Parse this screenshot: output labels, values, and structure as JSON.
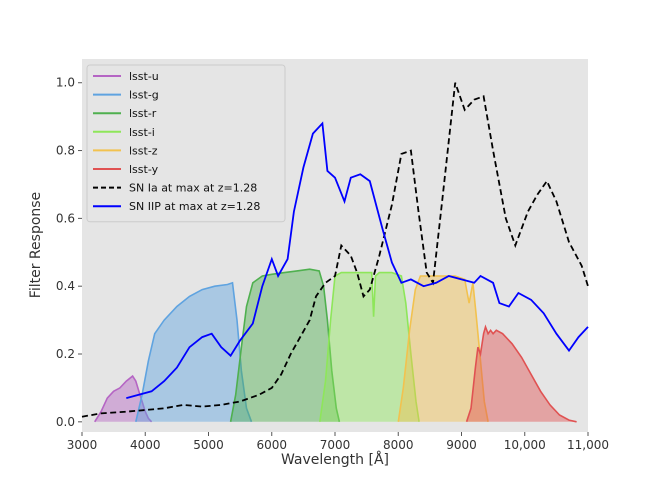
{
  "chart_data": {
    "type": "area",
    "title": "",
    "xlabel": "Wavelength [Å]",
    "ylabel": "Filter Response",
    "xlim": [
      3000,
      11000
    ],
    "ylim": [
      -0.03,
      1.07
    ],
    "x_ticks": [
      3000,
      4000,
      5000,
      6000,
      7000,
      8000,
      9000,
      10000,
      11000
    ],
    "x_tick_labels": [
      "3000",
      "4000",
      "5000",
      "6000",
      "7000",
      "8000",
      "9000",
      "10,000",
      "11,000"
    ],
    "y_ticks": [
      0.0,
      0.2,
      0.4,
      0.6,
      0.8,
      1.0
    ],
    "y_tick_labels": [
      "0.0",
      "0.2",
      "0.4",
      "0.6",
      "0.8",
      "1.0"
    ],
    "grid": false,
    "background": "#e5e5e5",
    "legend_position": "top-left",
    "series": [
      {
        "name": "lsst-u",
        "kind": "fill",
        "color": "#b565c4",
        "points": [
          [
            3200,
            0
          ],
          [
            3300,
            0.03
          ],
          [
            3400,
            0.07
          ],
          [
            3500,
            0.09
          ],
          [
            3600,
            0.1
          ],
          [
            3700,
            0.12
          ],
          [
            3800,
            0.135
          ],
          [
            3850,
            0.12
          ],
          [
            3900,
            0.09
          ],
          [
            3950,
            0.06
          ],
          [
            4000,
            0.03
          ],
          [
            4050,
            0.01
          ],
          [
            4100,
            0
          ]
        ]
      },
      {
        "name": "lsst-g",
        "kind": "fill",
        "color": "#5fa3e0",
        "points": [
          [
            3850,
            0
          ],
          [
            3950,
            0.08
          ],
          [
            4050,
            0.18
          ],
          [
            4150,
            0.26
          ],
          [
            4300,
            0.3
          ],
          [
            4500,
            0.34
          ],
          [
            4700,
            0.37
          ],
          [
            4900,
            0.39
          ],
          [
            5100,
            0.4
          ],
          [
            5300,
            0.405
          ],
          [
            5380,
            0.41
          ],
          [
            5450,
            0.3
          ],
          [
            5520,
            0.15
          ],
          [
            5600,
            0.04
          ],
          [
            5680,
            0
          ]
        ]
      },
      {
        "name": "lsst-r",
        "kind": "fill",
        "color": "#4fb04f",
        "points": [
          [
            5350,
            0
          ],
          [
            5430,
            0.08
          ],
          [
            5520,
            0.22
          ],
          [
            5600,
            0.34
          ],
          [
            5700,
            0.41
          ],
          [
            5850,
            0.43
          ],
          [
            6000,
            0.435
          ],
          [
            6200,
            0.44
          ],
          [
            6400,
            0.445
          ],
          [
            6600,
            0.45
          ],
          [
            6750,
            0.445
          ],
          [
            6820,
            0.4
          ],
          [
            6880,
            0.3
          ],
          [
            6950,
            0.15
          ],
          [
            7020,
            0.04
          ],
          [
            7070,
            0
          ]
        ]
      },
      {
        "name": "lsst-i",
        "kind": "fill",
        "color": "#8ee65a",
        "points": [
          [
            6760,
            0
          ],
          [
            6850,
            0.12
          ],
          [
            6930,
            0.3
          ],
          [
            7000,
            0.43
          ],
          [
            7100,
            0.44
          ],
          [
            7300,
            0.44
          ],
          [
            7500,
            0.44
          ],
          [
            7580,
            0.44
          ],
          [
            7610,
            0.31
          ],
          [
            7640,
            0.43
          ],
          [
            7700,
            0.44
          ],
          [
            7900,
            0.44
          ],
          [
            8050,
            0.43
          ],
          [
            8120,
            0.35
          ],
          [
            8200,
            0.2
          ],
          [
            8280,
            0.06
          ],
          [
            8330,
            0
          ]
        ]
      },
      {
        "name": "lsst-z",
        "kind": "fill",
        "color": "#f2c24f",
        "points": [
          [
            8000,
            0
          ],
          [
            8080,
            0.1
          ],
          [
            8180,
            0.27
          ],
          [
            8270,
            0.39
          ],
          [
            8350,
            0.43
          ],
          [
            8500,
            0.43
          ],
          [
            8700,
            0.43
          ],
          [
            8900,
            0.43
          ],
          [
            9050,
            0.42
          ],
          [
            9120,
            0.35
          ],
          [
            9180,
            0.41
          ],
          [
            9230,
            0.32
          ],
          [
            9300,
            0.18
          ],
          [
            9360,
            0.06
          ],
          [
            9420,
            0
          ]
        ]
      },
      {
        "name": "lsst-y",
        "kind": "fill",
        "color": "#e05252",
        "points": [
          [
            9080,
            0
          ],
          [
            9150,
            0.04
          ],
          [
            9220,
            0.16
          ],
          [
            9260,
            0.22
          ],
          [
            9300,
            0.2
          ],
          [
            9350,
            0.26
          ],
          [
            9380,
            0.28
          ],
          [
            9420,
            0.26
          ],
          [
            9460,
            0.27
          ],
          [
            9500,
            0.26
          ],
          [
            9550,
            0.27
          ],
          [
            9650,
            0.26
          ],
          [
            9800,
            0.23
          ],
          [
            9950,
            0.19
          ],
          [
            10100,
            0.14
          ],
          [
            10250,
            0.09
          ],
          [
            10400,
            0.05
          ],
          [
            10550,
            0.02
          ],
          [
            10700,
            0.005
          ],
          [
            10820,
            0
          ]
        ]
      },
      {
        "name": "SN Ia at max at z=1.28",
        "kind": "line",
        "dash": true,
        "color": "#000000",
        "points": [
          [
            3000,
            0.015
          ],
          [
            3300,
            0.025
          ],
          [
            3700,
            0.03
          ],
          [
            4000,
            0.035
          ],
          [
            4300,
            0.04
          ],
          [
            4600,
            0.05
          ],
          [
            4900,
            0.045
          ],
          [
            5200,
            0.05
          ],
          [
            5500,
            0.06
          ],
          [
            5800,
            0.08
          ],
          [
            6000,
            0.1
          ],
          [
            6150,
            0.14
          ],
          [
            6300,
            0.2
          ],
          [
            6450,
            0.25
          ],
          [
            6600,
            0.3
          ],
          [
            6700,
            0.37
          ],
          [
            6850,
            0.41
          ],
          [
            7000,
            0.43
          ],
          [
            7100,
            0.52
          ],
          [
            7250,
            0.49
          ],
          [
            7350,
            0.44
          ],
          [
            7450,
            0.37
          ],
          [
            7550,
            0.39
          ],
          [
            7700,
            0.49
          ],
          [
            7900,
            0.64
          ],
          [
            8050,
            0.79
          ],
          [
            8200,
            0.8
          ],
          [
            8320,
            0.62
          ],
          [
            8450,
            0.44
          ],
          [
            8550,
            0.41
          ],
          [
            8700,
            0.66
          ],
          [
            8900,
            1.0
          ],
          [
            9050,
            0.92
          ],
          [
            9200,
            0.95
          ],
          [
            9350,
            0.96
          ],
          [
            9500,
            0.8
          ],
          [
            9700,
            0.6
          ],
          [
            9850,
            0.52
          ],
          [
            10050,
            0.62
          ],
          [
            10200,
            0.67
          ],
          [
            10350,
            0.71
          ],
          [
            10500,
            0.65
          ],
          [
            10700,
            0.53
          ],
          [
            10900,
            0.46
          ],
          [
            11000,
            0.4
          ]
        ]
      },
      {
        "name": "SN IIP at max at z=1.28",
        "kind": "line",
        "dash": false,
        "color": "#0000ff",
        "points": [
          [
            3700,
            0.07
          ],
          [
            4100,
            0.09
          ],
          [
            4300,
            0.12
          ],
          [
            4500,
            0.16
          ],
          [
            4700,
            0.22
          ],
          [
            4900,
            0.25
          ],
          [
            5050,
            0.26
          ],
          [
            5200,
            0.22
          ],
          [
            5350,
            0.195
          ],
          [
            5500,
            0.24
          ],
          [
            5700,
            0.29
          ],
          [
            5850,
            0.4
          ],
          [
            6000,
            0.48
          ],
          [
            6100,
            0.43
          ],
          [
            6250,
            0.48
          ],
          [
            6350,
            0.62
          ],
          [
            6500,
            0.75
          ],
          [
            6650,
            0.85
          ],
          [
            6800,
            0.88
          ],
          [
            6880,
            0.74
          ],
          [
            7000,
            0.72
          ],
          [
            7150,
            0.65
          ],
          [
            7250,
            0.72
          ],
          [
            7400,
            0.73
          ],
          [
            7550,
            0.71
          ],
          [
            7750,
            0.57
          ],
          [
            7900,
            0.47
          ],
          [
            8050,
            0.41
          ],
          [
            8200,
            0.42
          ],
          [
            8400,
            0.4
          ],
          [
            8600,
            0.41
          ],
          [
            8800,
            0.43
          ],
          [
            9000,
            0.42
          ],
          [
            9200,
            0.41
          ],
          [
            9300,
            0.43
          ],
          [
            9500,
            0.41
          ],
          [
            9600,
            0.35
          ],
          [
            9750,
            0.34
          ],
          [
            9900,
            0.38
          ],
          [
            10100,
            0.36
          ],
          [
            10300,
            0.32
          ],
          [
            10500,
            0.26
          ],
          [
            10700,
            0.21
          ],
          [
            10850,
            0.25
          ],
          [
            11000,
            0.28
          ]
        ]
      }
    ]
  }
}
